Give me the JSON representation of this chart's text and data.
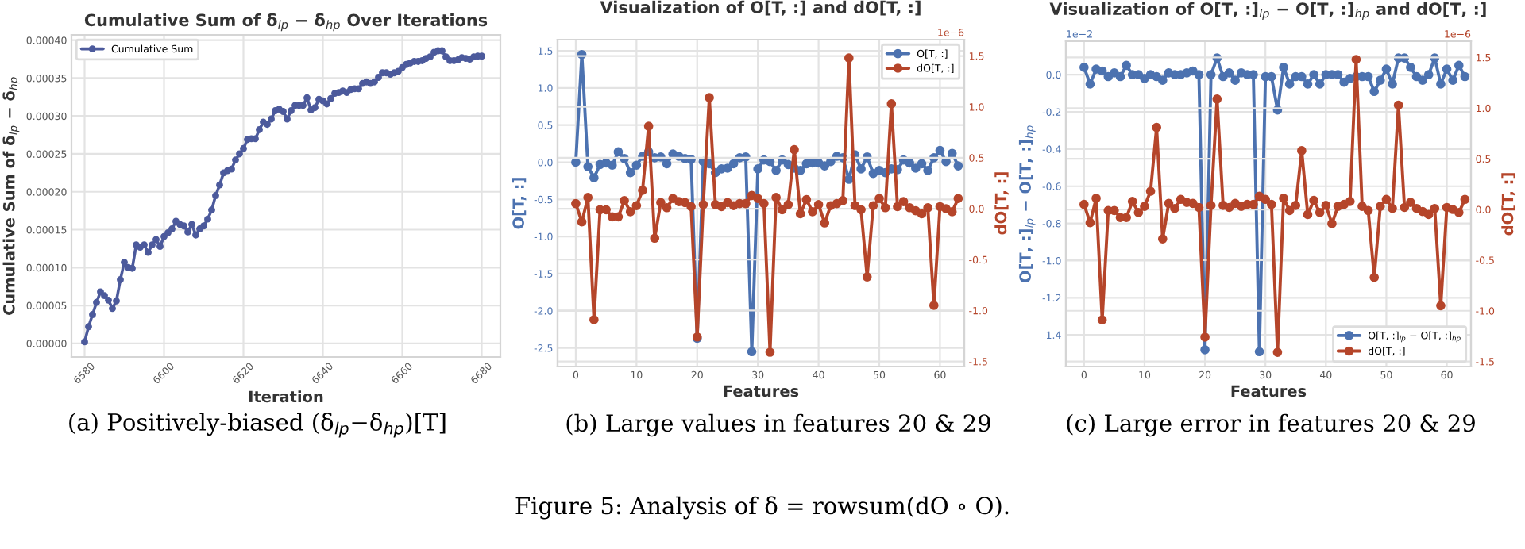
{
  "chart_data": [
    {
      "type": "line",
      "title": "Cumulative Sum of δ$_{lp}$ − δ$_{hp}$ Over Iterations",
      "xlabel": "Iteration",
      "ylabel": "Cumulative Sum of δ$_{lp}$ − δ$_{hp}$",
      "x": [
        6580,
        6581,
        6582,
        6583,
        6584,
        6585,
        6586,
        6587,
        6588,
        6589,
        6590,
        6591,
        6592,
        6593,
        6594,
        6595,
        6596,
        6597,
        6598,
        6599,
        6600,
        6601,
        6602,
        6603,
        6604,
        6605,
        6606,
        6607,
        6608,
        6609,
        6610,
        6611,
        6612,
        6613,
        6614,
        6615,
        6616,
        6617,
        6618,
        6619,
        6620,
        6621,
        6622,
        6623,
        6624,
        6625,
        6626,
        6627,
        6628,
        6629,
        6630,
        6631,
        6632,
        6633,
        6634,
        6635,
        6636,
        6637,
        6638,
        6639,
        6640,
        6641,
        6642,
        6643,
        6644,
        6645,
        6646,
        6647,
        6648,
        6649,
        6650,
        6651,
        6652,
        6653,
        6654,
        6655,
        6656,
        6657,
        6658,
        6659,
        6660,
        6661,
        6662,
        6663,
        6664,
        6665,
        6666,
        6667,
        6668,
        6669,
        6670,
        6671,
        6672,
        6673,
        6674,
        6675,
        6676,
        6677,
        6678,
        6679,
        6680
      ],
      "series": [
        {
          "name": "Cumulative Sum",
          "color": "#4c5a9c",
          "values": [
            2e-06,
            2.2e-05,
            3.8e-05,
            5.4e-05,
            6.8e-05,
            6.3e-05,
            5.7e-05,
            4.6e-05,
            5.6e-05,
            8.4e-05,
            0.000107,
            0.0001,
            9.9e-05,
            0.00013,
            0.000127,
            0.00013,
            0.00012,
            0.00013,
            0.000137,
            0.000128,
            0.000141,
            0.000146,
            0.000151,
            0.000161,
            0.000157,
            0.000155,
            0.000147,
            0.000157,
            0.000143,
            0.000151,
            0.000155,
            0.000164,
            0.000176,
            0.000195,
            0.000209,
            0.000225,
            0.000228,
            0.00023,
            0.000242,
            0.00025,
            0.000257,
            0.000269,
            0.00027,
            0.00027,
            0.000282,
            0.000292,
            0.000289,
            0.000296,
            0.000307,
            0.000309,
            0.000306,
            0.000296,
            0.000307,
            0.000314,
            0.000314,
            0.000314,
            0.000324,
            0.000308,
            0.000311,
            0.000322,
            0.00032,
            0.000316,
            0.000323,
            0.00033,
            0.000331,
            0.000333,
            0.000331,
            0.000335,
            0.000336,
            0.000336,
            0.000343,
            0.000345,
            0.000343,
            0.000345,
            0.000351,
            0.000357,
            0.000357,
            0.000355,
            0.000357,
            0.000359,
            0.000364,
            0.000368,
            0.00037,
            0.000372,
            0.000372,
            0.000373,
            0.000376,
            0.000378,
            0.000384,
            0.000386,
            0.000386,
            0.000378,
            0.000373,
            0.000373,
            0.000374,
            0.000377,
            0.000376,
            0.000375,
            0.000378,
            0.000379,
            0.000379
          ]
        }
      ],
      "xlim": [
        6576.7,
        6684.7
      ],
      "ylim": [
        -1.8e-05,
        0.000407
      ],
      "xticks": [
        6580,
        6600,
        6620,
        6640,
        6660,
        6680
      ],
      "yticks": [
        {
          "value": 0,
          "label": "0.00000"
        },
        {
          "value": 5e-05,
          "label": "0.00005"
        },
        {
          "value": 0.0001,
          "label": "0.00010"
        },
        {
          "value": 0.00015,
          "label": "0.00015"
        },
        {
          "value": 0.0002,
          "label": "0.00020"
        },
        {
          "value": 0.00025,
          "label": "0.00025"
        },
        {
          "value": 0.0003,
          "label": "0.00030"
        },
        {
          "value": 0.00035,
          "label": "0.00035"
        },
        {
          "value": 0.0004,
          "label": "0.00040"
        }
      ],
      "grid": true,
      "legend": "top left",
      "marker": "circle",
      "line_style": "solid",
      "annotations": [
        "(a) Positively-biased (δ$_{lp}$−δ$_{hp}$)[T]"
      ]
    },
    {
      "type": "line",
      "title": "Visualization of O[T, :] and dO[T, :]",
      "xlabel": "Features",
      "ylabel": "O[T, :]",
      "y2label": "dO[T, :]",
      "x": [
        0,
        1,
        2,
        3,
        4,
        5,
        6,
        7,
        8,
        9,
        10,
        11,
        12,
        13,
        14,
        15,
        16,
        17,
        18,
        19,
        20,
        21,
        22,
        23,
        24,
        25,
        26,
        27,
        28,
        29,
        30,
        31,
        32,
        33,
        34,
        35,
        36,
        37,
        38,
        39,
        40,
        41,
        42,
        43,
        44,
        45,
        46,
        47,
        48,
        49,
        50,
        51,
        52,
        53,
        54,
        55,
        56,
        57,
        58,
        59,
        60,
        61,
        62,
        63
      ],
      "series": [
        {
          "name": "O[T, :]",
          "color": "#4c72b0",
          "values": [
            0.0,
            1.45,
            -0.06,
            -0.21,
            -0.03,
            -0.01,
            -0.04,
            0.14,
            0.05,
            -0.14,
            -0.04,
            0.08,
            0.14,
            0.06,
            0.07,
            -0.02,
            0.11,
            0.08,
            0.05,
            0.04,
            -2.37,
            0.01,
            -0.02,
            -0.14,
            -0.09,
            -0.08,
            -0.02,
            0.06,
            0.07,
            -2.55,
            -0.09,
            0.03,
            0.01,
            -0.11,
            0.03,
            -0.03,
            -0.08,
            -0.11,
            -0.02,
            -0.01,
            -0.01,
            -0.05,
            0.01,
            0.08,
            0.06,
            -0.23,
            0.1,
            -0.09,
            0.07,
            -0.15,
            -0.11,
            -0.14,
            -0.09,
            -0.1,
            0.03,
            -0.01,
            -0.08,
            -0.02,
            -0.11,
            0.06,
            0.16,
            0.01,
            0.12,
            -0.05
          ]
        },
        {
          "name": "dO[T, :]",
          "color": "#b5452a",
          "axis": "y2",
          "values": [
            0.05,
            -0.13,
            0.11,
            -1.09,
            -0.01,
            -0.01,
            -0.08,
            -0.08,
            0.08,
            -0.03,
            0.03,
            0.18,
            0.81,
            -0.29,
            0.06,
            0.01,
            0.1,
            0.07,
            0.06,
            0.02,
            -1.26,
            0.04,
            1.09,
            0.04,
            0.02,
            0.06,
            0.03,
            0.05,
            0.05,
            0.13,
            0.1,
            0.05,
            -1.41,
            0.11,
            -0.01,
            0.04,
            0.58,
            -0.05,
            0.09,
            -0.03,
            0.04,
            -0.14,
            0.03,
            0.05,
            0.08,
            1.48,
            0.03,
            -0.01,
            -0.67,
            0.03,
            0.1,
            0.01,
            1.03,
            0.02,
            0.07,
            0.01,
            -0.02,
            -0.05,
            0.01,
            -0.95,
            0.02,
            0.0,
            -0.03,
            0.1
          ]
        }
      ],
      "xlim": [
        -3,
        64
      ],
      "ylim": [
        -2.75,
        1.65
      ],
      "y2lim": [
        -1.55,
        1.66
      ],
      "xticks": [
        0,
        10,
        20,
        30,
        40,
        50,
        60
      ],
      "yticks": [
        -2.5,
        {
          "value": -2,
          "label": "-2.0"
        },
        -1.5,
        {
          "value": -1,
          "label": "-1.0"
        },
        -0.5,
        {
          "value": 0,
          "label": "0.0"
        },
        0.5,
        {
          "value": 1,
          "label": "1.0"
        },
        1.5
      ],
      "y2ticks": [
        -1.5,
        {
          "value": -1,
          "label": "-1.0"
        },
        -0.5,
        {
          "value": 0,
          "label": "0.0"
        },
        0.5,
        {
          "value": 1,
          "label": "1.0"
        },
        1.5
      ],
      "grid": true,
      "legend": "top right",
      "marker": "circle",
      "line_style": "solid",
      "annotations": [
        "1e−6",
        "(b) Large values in features 20 & 29"
      ]
    },
    {
      "type": "line",
      "title": "Visualization of O[T, :]$_{lp}$ − O[T, :]$_{hp}$ and dO[T, :]",
      "xlabel": "Features",
      "ylabel": "O[T, :]$_{lp}$ − O[T, :]$_{hp}$",
      "y2label": "dO[T, :]",
      "x": [
        0,
        1,
        2,
        3,
        4,
        5,
        6,
        7,
        8,
        9,
        10,
        11,
        12,
        13,
        14,
        15,
        16,
        17,
        18,
        19,
        20,
        21,
        22,
        23,
        24,
        25,
        26,
        27,
        28,
        29,
        30,
        31,
        32,
        33,
        34,
        35,
        36,
        37,
        38,
        39,
        40,
        41,
        42,
        43,
        44,
        45,
        46,
        47,
        48,
        49,
        50,
        51,
        52,
        53,
        54,
        55,
        56,
        57,
        58,
        59,
        60,
        61,
        62,
        63
      ],
      "series": [
        {
          "name": "O[T, :]$_{lp}$ − O[T, :]$_{hp}$",
          "color": "#4c72b0",
          "values": [
            0.04,
            -0.05,
            0.03,
            0.02,
            -0.01,
            0.01,
            -0.01,
            0.05,
            0.0,
            0.0,
            -0.02,
            0.0,
            -0.01,
            -0.03,
            0.01,
            0.0,
            0.0,
            0.01,
            0.02,
            0.0,
            -1.48,
            0.0,
            0.09,
            -0.01,
            0.01,
            -0.03,
            0.01,
            0.0,
            0.0,
            -1.49,
            -0.01,
            -0.01,
            -0.19,
            0.04,
            -0.05,
            -0.01,
            -0.01,
            -0.05,
            0.0,
            -0.05,
            0.0,
            0.0,
            0.0,
            -0.04,
            -0.02,
            -0.01,
            -0.01,
            -0.01,
            -0.09,
            -0.03,
            0.03,
            -0.05,
            0.09,
            0.09,
            0.04,
            -0.01,
            -0.03,
            0.0,
            0.09,
            -0.05,
            0.03,
            -0.03,
            0.05,
            -0.01
          ]
        },
        {
          "name": "dO[T, :]",
          "color": "#b5452a",
          "axis": "y2",
          "values": [
            0.05,
            -0.13,
            0.11,
            -1.09,
            -0.01,
            -0.01,
            -0.08,
            -0.08,
            0.08,
            -0.03,
            0.03,
            0.18,
            0.81,
            -0.29,
            0.06,
            0.01,
            0.1,
            0.07,
            0.06,
            0.02,
            -1.26,
            0.04,
            1.09,
            0.04,
            0.02,
            0.06,
            0.03,
            0.05,
            0.05,
            0.13,
            0.1,
            0.05,
            -1.41,
            0.11,
            -0.01,
            0.04,
            0.58,
            -0.05,
            0.09,
            -0.03,
            0.04,
            -0.14,
            0.03,
            0.05,
            0.08,
            1.48,
            0.03,
            -0.01,
            -0.67,
            0.03,
            0.1,
            0.01,
            1.03,
            0.02,
            0.07,
            0.01,
            -0.02,
            -0.05,
            0.01,
            -0.95,
            0.02,
            0.0,
            -0.03,
            0.1
          ]
        }
      ],
      "xlim": [
        -3,
        64
      ],
      "ylim": [
        -1.57,
        0.18
      ],
      "y2lim": [
        -1.55,
        1.66
      ],
      "xticks": [
        0,
        10,
        20,
        30,
        40,
        50,
        60
      ],
      "yticks": [
        -1.4,
        -1.2,
        {
          "value": -1,
          "label": "-1.0"
        },
        -0.8,
        -0.6,
        -0.4,
        -0.2,
        {
          "value": 0,
          "label": "0.0"
        }
      ],
      "y2ticks": [
        -1.5,
        {
          "value": -1,
          "label": "-1.0"
        },
        -0.5,
        {
          "value": 0,
          "label": "0.0"
        },
        0.5,
        {
          "value": 1,
          "label": "1.0"
        },
        1.5
      ],
      "grid": true,
      "legend": "bottom right",
      "marker": "circle",
      "line_style": "solid",
      "annotations": [
        "1e−2",
        "1e−6",
        "(c) Large error in features 20 & 29",
        "Figure 5: Analysis of δ = rowsum(dO ∘ O)."
      ]
    }
  ]
}
